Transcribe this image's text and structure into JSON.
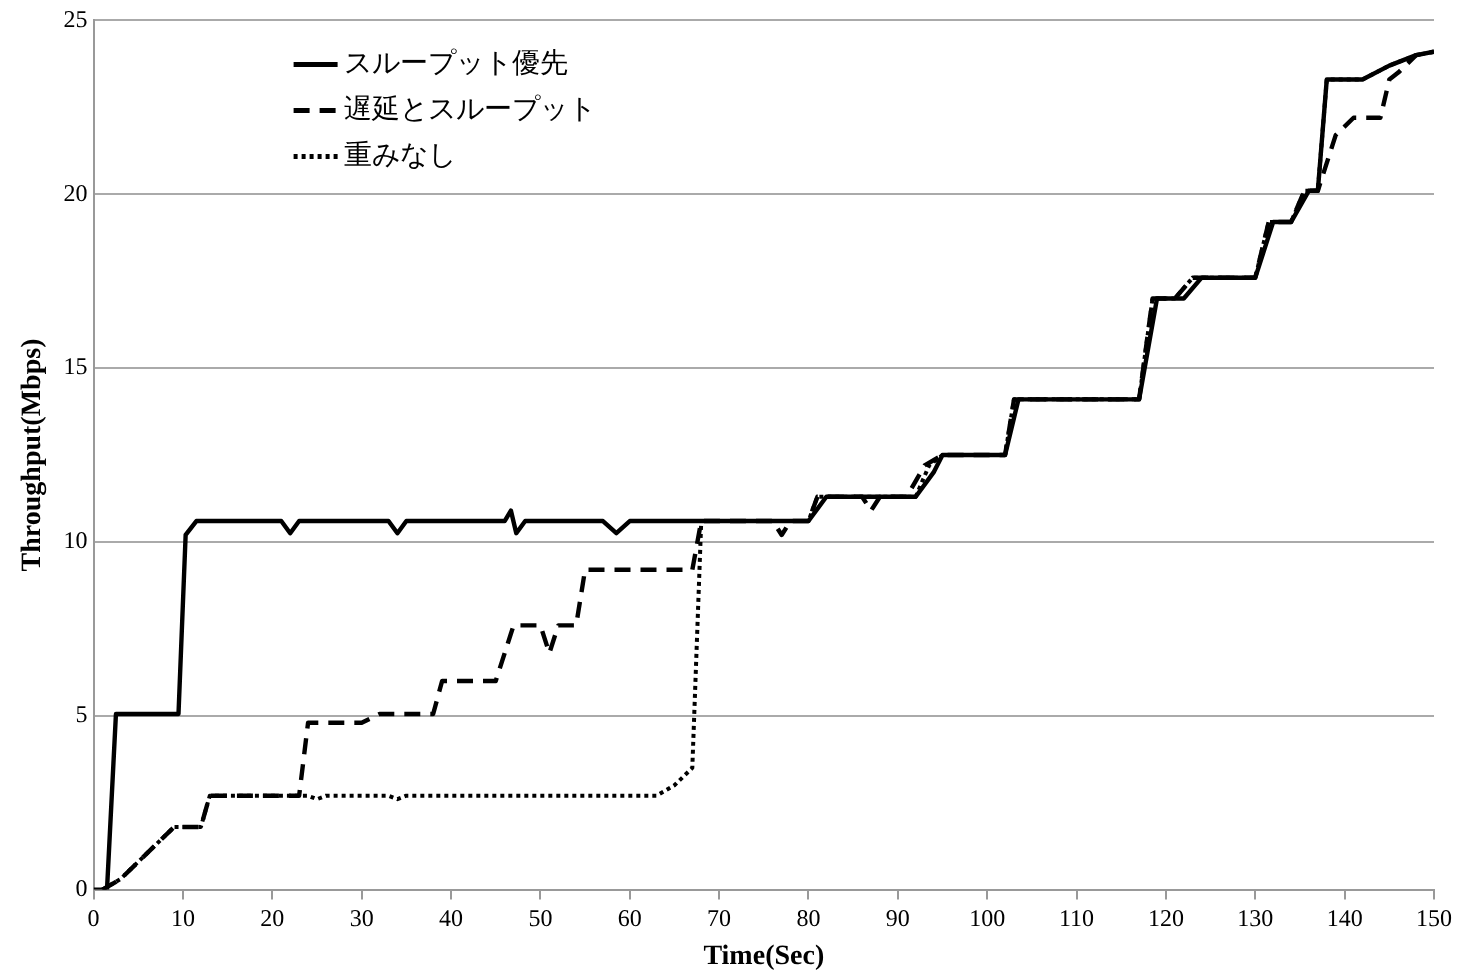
{
  "chart_data": {
    "type": "line",
    "xlabel": "Time(Sec)",
    "ylabel": "Throughput(Mbps)",
    "xlim": [
      0,
      150
    ],
    "xticks": [
      0,
      10,
      20,
      30,
      40,
      50,
      60,
      70,
      80,
      90,
      100,
      110,
      120,
      130,
      140,
      150
    ],
    "ylim": [
      0,
      25
    ],
    "yticks": [
      0,
      5,
      10,
      15,
      20,
      25
    ],
    "grid": "y",
    "legend": "top left",
    "marker": "none",
    "series": [
      {
        "name": "スループット優先",
        "color": "#000000",
        "line_style": "solid",
        "x": [
          0,
          1.5,
          2.5,
          9.5,
          10.3,
          11.5,
          21,
          22,
          23,
          33,
          34,
          35,
          46,
          46.7,
          47.3,
          48.3,
          57,
          58.5,
          60,
          80,
          82,
          92,
          94,
          95,
          102,
          103.5,
          117,
          119,
          122,
          124,
          130,
          132,
          134,
          136,
          137,
          138,
          142,
          145,
          148,
          150
        ],
        "values": [
          0,
          0,
          5.05,
          5.05,
          10.2,
          10.6,
          10.6,
          10.25,
          10.6,
          10.6,
          10.25,
          10.6,
          10.6,
          10.9,
          10.25,
          10.6,
          10.6,
          10.25,
          10.6,
          10.6,
          11.3,
          11.3,
          12,
          12.5,
          12.5,
          14.1,
          14.1,
          17,
          17,
          17.6,
          17.6,
          19.2,
          19.2,
          20.1,
          20.1,
          23.3,
          23.3,
          23.7,
          24,
          24.1
        ]
      },
      {
        "name": "遅延とスループット",
        "color": "#000000",
        "line_style": "dashed",
        "x": [
          1,
          3,
          9,
          12,
          13,
          23,
          24,
          30,
          32,
          38,
          39,
          45,
          47,
          50,
          51,
          52,
          54,
          55,
          67,
          68,
          76,
          77,
          78,
          80,
          81,
          86,
          87,
          88,
          91,
          93,
          95,
          102,
          103,
          117,
          118.5,
          121,
          123,
          130,
          131.5,
          134,
          135.5,
          137,
          139,
          141,
          144,
          145,
          146,
          148,
          150
        ],
        "values": [
          0,
          0.3,
          1.8,
          1.8,
          2.7,
          2.7,
          4.8,
          4.8,
          5.05,
          5.05,
          6,
          6,
          7.6,
          7.6,
          6.8,
          7.6,
          7.6,
          9.2,
          9.2,
          10.6,
          10.6,
          10.2,
          10.6,
          10.6,
          11.3,
          11.3,
          10.9,
          11.3,
          11.3,
          12.2,
          12.5,
          12.5,
          14.1,
          14.1,
          17,
          17,
          17.6,
          17.6,
          19.2,
          19.2,
          20.1,
          20.1,
          21.7,
          22.2,
          22.2,
          23.3,
          23.5,
          24,
          24.1
        ]
      },
      {
        "name": "重みなし",
        "color": "#000000",
        "line_style": "dotted",
        "x": [
          1,
          3,
          9,
          12,
          13,
          24,
          25,
          26,
          33,
          34,
          35,
          63,
          65,
          67,
          68,
          80,
          81,
          92,
          93.5,
          95,
          102,
          103,
          117,
          118.5,
          121,
          123,
          130,
          131.5,
          134,
          135.5,
          137,
          138,
          142,
          145,
          148,
          150
        ],
        "values": [
          0,
          0.3,
          1.8,
          1.8,
          2.7,
          2.7,
          2.6,
          2.7,
          2.7,
          2.6,
          2.7,
          2.7,
          3,
          3.5,
          10.6,
          10.6,
          11.3,
          11.3,
          12.2,
          12.5,
          12.5,
          14.1,
          14.1,
          17,
          17,
          17.6,
          17.6,
          19.2,
          19.2,
          20.1,
          20.1,
          23.3,
          23.3,
          23.7,
          24,
          24.1
        ]
      }
    ]
  }
}
